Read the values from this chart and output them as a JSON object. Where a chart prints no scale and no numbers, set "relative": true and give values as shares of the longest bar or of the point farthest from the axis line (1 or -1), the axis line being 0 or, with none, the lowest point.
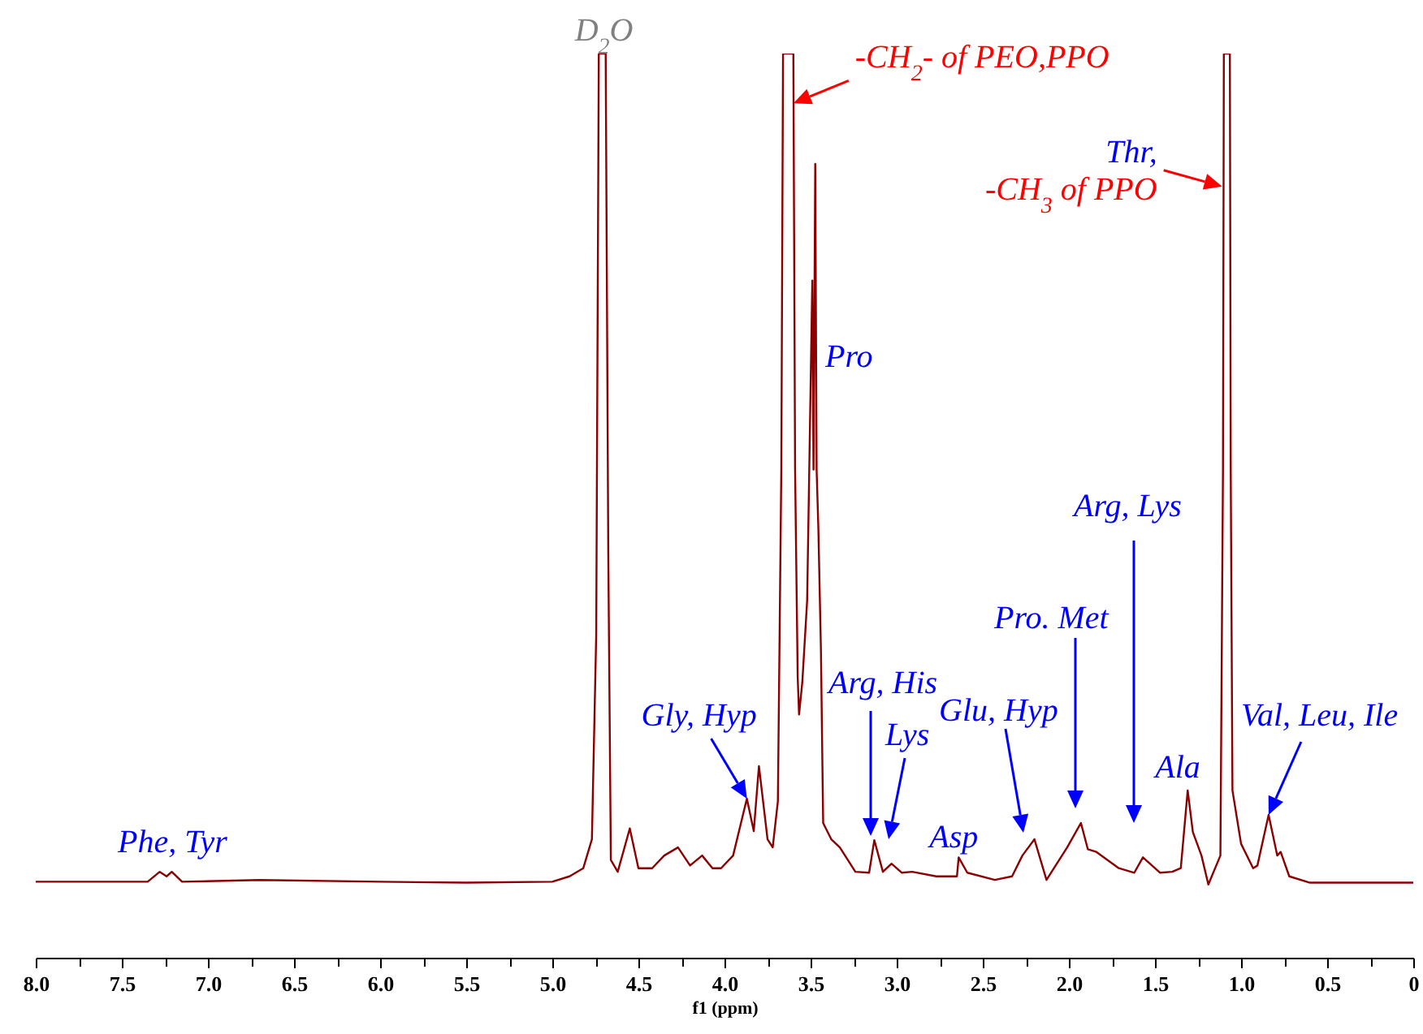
{
  "chart_data": {
    "type": "line",
    "relative": true,
    "xlabel": "f1 (ppm)",
    "xlim": [
      8,
      0
    ],
    "xticks": [
      {
        "value": 8,
        "label": "8.0"
      },
      {
        "value": 7.75,
        "label": null
      },
      {
        "value": 7.5,
        "label": "7.5"
      },
      {
        "value": 7.25,
        "label": null
      },
      {
        "value": 7,
        "label": "7.0"
      },
      {
        "value": 6.75,
        "label": null
      },
      {
        "value": 6.5,
        "label": "6.5"
      },
      {
        "value": 6.25,
        "label": null
      },
      {
        "value": 6,
        "label": "6.0"
      },
      {
        "value": 5.75,
        "label": null
      },
      {
        "value": 5.5,
        "label": "5.5"
      },
      {
        "value": 5.25,
        "label": null
      },
      {
        "value": 5,
        "label": "5.0"
      },
      {
        "value": 4.75,
        "label": null
      },
      {
        "value": 4.5,
        "label": "4.5"
      },
      {
        "value": 4.25,
        "label": null
      },
      {
        "value": 4,
        "label": "4.0"
      },
      {
        "value": 3.75,
        "label": null
      },
      {
        "value": 3.5,
        "label": "3.5"
      },
      {
        "value": 3.25,
        "label": null
      },
      {
        "value": 3,
        "label": "3.0"
      },
      {
        "value": 2.75,
        "label": null
      },
      {
        "value": 2.5,
        "label": "2.5"
      },
      {
        "value": 2.25,
        "label": null
      },
      {
        "value": 2,
        "label": "2.0"
      },
      {
        "value": 1.75,
        "label": null
      },
      {
        "value": 1.5,
        "label": "1.5"
      },
      {
        "value": 1.25,
        "label": null
      },
      {
        "value": 1,
        "label": "1.0"
      },
      {
        "value": 0.75,
        "label": null
      },
      {
        "value": 0.5,
        "label": "0.5"
      },
      {
        "value": 0.25,
        "label": null
      },
      0
    ],
    "grid": false,
    "legend": false,
    "marker": "none",
    "line_style": "solid",
    "x": [
      8.0,
      7.6,
      7.35,
      7.28,
      7.24,
      7.21,
      7.15,
      6.7,
      6.0,
      5.5,
      5.0,
      4.9,
      4.82,
      4.77,
      4.745,
      4.73,
      4.69,
      4.675,
      4.66,
      4.62,
      4.55,
      4.5,
      4.42,
      4.35,
      4.27,
      4.2,
      4.13,
      4.07,
      4.02,
      3.95,
      3.87,
      3.83,
      3.8,
      3.75,
      3.72,
      3.69,
      3.67,
      3.66,
      3.6,
      3.59,
      3.575,
      3.567,
      3.548,
      3.52,
      3.49,
      3.483,
      3.473,
      3.465,
      3.455,
      3.44,
      3.427,
      3.38,
      3.33,
      3.24,
      3.16,
      3.13,
      3.08,
      3.03,
      2.97,
      2.91,
      2.77,
      2.65,
      2.64,
      2.59,
      2.43,
      2.33,
      2.27,
      2.2,
      2.13,
      2.01,
      1.93,
      1.89,
      1.84,
      1.71,
      1.62,
      1.57,
      1.47,
      1.4,
      1.35,
      1.31,
      1.28,
      1.23,
      1.19,
      1.12,
      1.105,
      1.1,
      1.065,
      1.06,
      1.05,
      1.0,
      0.93,
      0.905,
      0.84,
      0.79,
      0.77,
      0.72,
      0.6,
      0.3,
      0.0
    ],
    "series": [
      {
        "color": "#8b0000",
        "values": [
          0.084,
          0.084,
          0.084,
          0.095,
          0.09,
          0.095,
          0.084,
          0.086,
          0.084,
          0.083,
          0.084,
          0.09,
          0.099,
          0.131,
          0.357,
          1,
          1,
          0.449,
          0.108,
          0.095,
          0.143,
          0.099,
          0.099,
          0.113,
          0.122,
          0.102,
          0.113,
          0.099,
          0.099,
          0.113,
          0.176,
          0.14,
          0.212,
          0.131,
          0.122,
          0.173,
          0.54,
          1,
          1,
          0.54,
          0.311,
          0.269,
          0.305,
          0.395,
          0.749,
          0.54,
          0.878,
          0.54,
          0.476,
          0.341,
          0.149,
          0.131,
          0.122,
          0.095,
          0.094,
          0.13,
          0.095,
          0.104,
          0.094,
          0.095,
          0.09,
          0.09,
          0.111,
          0.094,
          0.086,
          0.09,
          0.113,
          0.131,
          0.086,
          0.122,
          0.149,
          0.12,
          0.117,
          0.099,
          0.094,
          0.111,
          0.094,
          0.095,
          0.099,
          0.185,
          0.139,
          0.113,
          0.081,
          0.113,
          0.54,
          1,
          1,
          0.54,
          0.185,
          0.126,
          0.099,
          0.102,
          0.158,
          0.113,
          0.117,
          0.09,
          0.083,
          0.083,
          0.083
        ]
      }
    ],
    "annotations": [
      {
        "text": "D$_{2}$O",
        "x": 4.7,
        "y": 1
      },
      {
        "text": "-CH$_{2}$- of PEO,PPO",
        "x": 3.6,
        "y": 0.945
      },
      {
        "text": "Thr,",
        "x": 1.11,
        "y": 0.853
      },
      {
        "text": "-CH$_{3}$ of PPO",
        "x": 1.11,
        "y": 0.853
      },
      "Pro",
      {
        "text": "Gly, Hyp",
        "x": 3.87,
        "y": 0.176
      },
      "Arg, His",
      "Lys",
      {
        "text": "Asp",
        "x": 2.64,
        "y": 0.111
      },
      "Glu, Hyp",
      "Pro. Met",
      "Arg, Lys",
      {
        "text": "Ala",
        "x": 1.31,
        "y": 0.185
      },
      {
        "text": "Val, Leu, Ile",
        "x": 0.84,
        "y": 0.158
      },
      {
        "text": "Phe, Tyr",
        "x": 7.25,
        "y": 0.095
      }
    ]
  }
}
